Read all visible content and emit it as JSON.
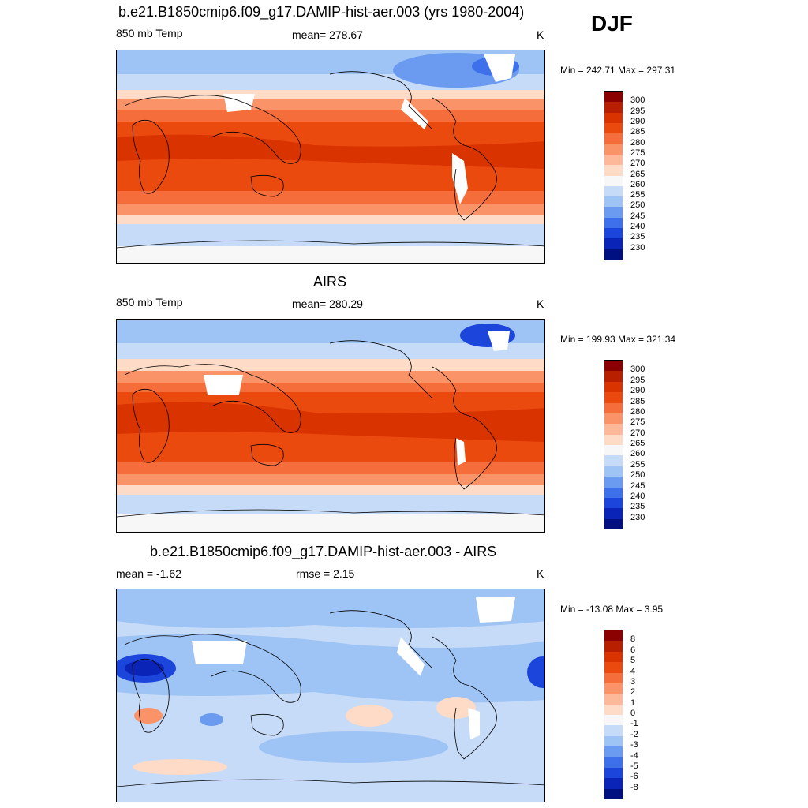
{
  "season": "DJF",
  "panels": [
    {
      "title": "b.e21.B1850cmip6.f09_g17.DAMIP-hist-aer.003 (yrs 1980-2004)",
      "left_label": "850 mb Temp",
      "center_label": "mean= 278.67",
      "unit": "K",
      "minmax": "Min = 242.71 Max = 297.31"
    },
    {
      "title": "AIRS",
      "left_label": "850 mb Temp",
      "center_label": "mean= 280.29",
      "unit": "K",
      "minmax": "Min = 199.93 Max = 321.34"
    },
    {
      "title": "b.e21.B1850cmip6.f09_g17.DAMIP-hist-aer.003 - AIRS",
      "left_label": "mean =  -1.62",
      "center_label": "rmse =   2.15",
      "unit": "K",
      "minmax": "Min = -13.08 Max =   3.95"
    }
  ],
  "colorbars": {
    "temperature": {
      "labels": [
        "300",
        "295",
        "290",
        "285",
        "280",
        "275",
        "270",
        "265",
        "260",
        "255",
        "250",
        "245",
        "240",
        "235",
        "230"
      ],
      "colors": [
        "#8b0000",
        "#b81e00",
        "#d93300",
        "#eb4a0e",
        "#f46d3a",
        "#fb9368",
        "#fdb89a",
        "#fddbc7",
        "#f7f7f7",
        "#c6dbf7",
        "#9ec3f5",
        "#6a9bf0",
        "#3d70ea",
        "#1c45dc",
        "#0a24b8",
        "#001080"
      ]
    },
    "difference": {
      "labels": [
        "8",
        "6",
        "5",
        "4",
        "3",
        "2",
        "1",
        "0",
        "-1",
        "-2",
        "-3",
        "-4",
        "-5",
        "-6",
        "-8"
      ],
      "colors": [
        "#8b0000",
        "#b81e00",
        "#d93300",
        "#eb4a0e",
        "#f46d3a",
        "#fb9368",
        "#fdb89a",
        "#fddbc7",
        "#f7f7f7",
        "#c6dbf7",
        "#9ec3f5",
        "#6a9bf0",
        "#3d70ea",
        "#1c45dc",
        "#0a24b8",
        "#001080"
      ]
    }
  },
  "chart_data": [
    {
      "type": "heatmap",
      "title": "b.e21.B1850cmip6.f09_g17.DAMIP-hist-aer.003 (yrs 1980-2004)",
      "field": "850 mb Temp",
      "unit": "K",
      "mean": 278.67,
      "min": 242.71,
      "max": 297.31,
      "contour_levels": [
        230,
        235,
        240,
        245,
        250,
        255,
        260,
        265,
        270,
        275,
        280,
        285,
        290,
        295,
        300
      ]
    },
    {
      "type": "heatmap",
      "title": "AIRS",
      "field": "850 mb Temp",
      "unit": "K",
      "mean": 280.29,
      "min": 199.93,
      "max": 321.34,
      "contour_levels": [
        230,
        235,
        240,
        245,
        250,
        255,
        260,
        265,
        270,
        275,
        280,
        285,
        290,
        295,
        300
      ]
    },
    {
      "type": "heatmap",
      "title": "b.e21.B1850cmip6.f09_g17.DAMIP-hist-aer.003 - AIRS",
      "unit": "K",
      "mean": -1.62,
      "rmse": 2.15,
      "min": -13.08,
      "max": 3.95,
      "contour_levels": [
        -8,
        -6,
        -5,
        -4,
        -3,
        -2,
        -1,
        0,
        1,
        2,
        3,
        4,
        5,
        6,
        8
      ]
    }
  ]
}
